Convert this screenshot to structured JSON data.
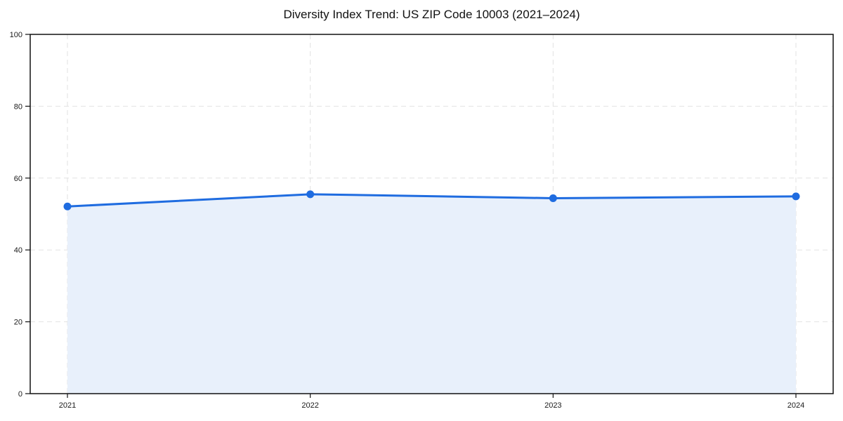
{
  "title": "Diversity Index Trend: US ZIP Code 10003 (2021–2024)",
  "chart_data": {
    "type": "area",
    "title": "Diversity Index Trend: US ZIP Code 10003 (2021–2024)",
    "categories": [
      "2021",
      "2022",
      "2023",
      "2024"
    ],
    "series": [
      {
        "name": "Diversity Index",
        "values": [
          52.1,
          55.5,
          54.4,
          54.9
        ]
      }
    ],
    "xlabel": "",
    "ylabel": "",
    "ylim": [
      0,
      100
    ],
    "yticks": [
      0,
      20,
      40,
      60,
      80,
      100
    ],
    "grid": true,
    "grid_style": "dashed",
    "legend": "none",
    "colors": {
      "line": "#1f6ce0",
      "marker": "#1f6ce0",
      "fill": "#e8f0fb",
      "gridline": "#e2e2e2",
      "spine": "#111111",
      "tick_label": "#1a1a1a",
      "background": "#ffffff"
    }
  }
}
